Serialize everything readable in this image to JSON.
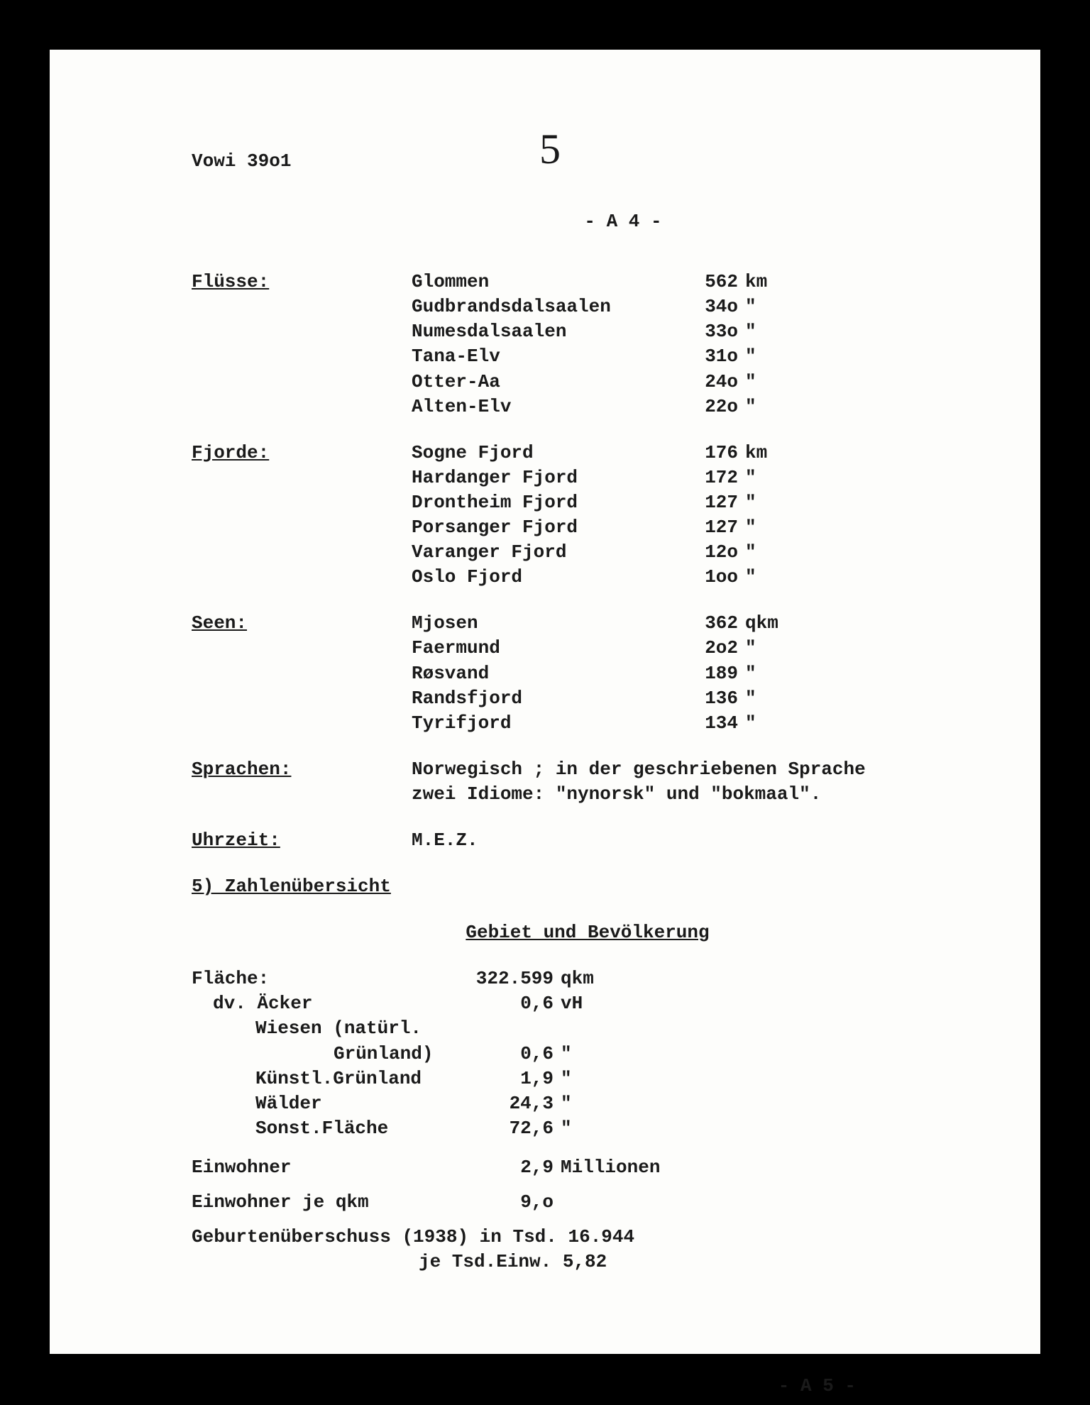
{
  "header": {
    "vowi": "Vowi 39o1",
    "handwritten_page": "5",
    "page_top": "- A 4 -",
    "page_bottom": "- A 5 -"
  },
  "sections": {
    "fluesse": {
      "label": "Flüsse:",
      "rows": [
        {
          "name": "Glommen",
          "val": "562",
          "unit": "km"
        },
        {
          "name": "Gudbrandsdalsaalen",
          "val": "34o",
          "unit": "\""
        },
        {
          "name": "Numesdalsaalen",
          "val": "33o",
          "unit": "\""
        },
        {
          "name": "Tana-Elv",
          "val": "31o",
          "unit": "\""
        },
        {
          "name": "Otter-Aa",
          "val": "24o",
          "unit": "\""
        },
        {
          "name": "Alten-Elv",
          "val": "22o",
          "unit": "\""
        }
      ]
    },
    "fjorde": {
      "label": "Fjorde:",
      "rows": [
        {
          "name": "Sogne Fjord",
          "val": "176",
          "unit": "km"
        },
        {
          "name": "Hardanger Fjord",
          "val": "172",
          "unit": "\""
        },
        {
          "name": "Drontheim Fjord",
          "val": "127",
          "unit": "\""
        },
        {
          "name": "Porsanger Fjord",
          "val": "127",
          "unit": "\""
        },
        {
          "name": "Varanger Fjord",
          "val": "12o",
          "unit": "\""
        },
        {
          "name": "Oslo Fjord",
          "val": "1oo",
          "unit": "\""
        }
      ]
    },
    "seen": {
      "label": "Seen:",
      "rows": [
        {
          "name": "Mjosen",
          "val": "362",
          "unit": "qkm"
        },
        {
          "name": "Faermund",
          "val": "2o2",
          "unit": "\""
        },
        {
          "name": "Røsvand",
          "val": "189",
          "unit": "\""
        },
        {
          "name": "Randsfjord",
          "val": "136",
          "unit": "\""
        },
        {
          "name": "Tyrifjord",
          "val": "134",
          "unit": "\""
        }
      ]
    },
    "sprachen": {
      "label": "Sprachen:",
      "text": "Norwegisch ; in der geschriebenen Sprache zwei Idiome: \"nynorsk\" und \"bokmaal\"."
    },
    "uhrzeit": {
      "label": "Uhrzeit:",
      "text": "M.E.Z."
    }
  },
  "zahlen": {
    "heading": "5) Zahlenübersicht",
    "subheading": "Gebiet und Bevölkerung",
    "flaeche": {
      "label": "Fläche:",
      "val": "322.599",
      "unit": "qkm"
    },
    "breakdown": [
      {
        "label": "dv. Äcker",
        "val": "0,6",
        "unit": "vH",
        "indent": "indent1"
      },
      {
        "label": "Wiesen (natürl.",
        "val": "",
        "unit": "",
        "indent": "indent2"
      },
      {
        "label": "Grünland)",
        "val": "0,6",
        "unit": "\"",
        "indent": "indent3"
      },
      {
        "label": "Künstl.Grünland",
        "val": "1,9",
        "unit": "\"",
        "indent": "indent2"
      },
      {
        "label": "Wälder",
        "val": "24,3",
        "unit": "\"",
        "indent": "indent2"
      },
      {
        "label": "Sonst.Fläche",
        "val": "72,6",
        "unit": "\"",
        "indent": "indent2"
      }
    ],
    "einwohner": {
      "label": "Einwohner",
      "val": "2,9",
      "unit": "Millionen"
    },
    "einwohner_qkm": {
      "label": "Einwohner je qkm",
      "val": "9,o",
      "unit": ""
    },
    "geburt1": "Geburtenüberschuss (1938) in Tsd. 16.944",
    "geburt2": "je Tsd.Einw.    5,82"
  },
  "style": {
    "font": "Courier New",
    "font_size_pt": 26,
    "bg_color": "#fdfdfb",
    "text_color": "#1a1a1a",
    "frame_color": "#000000"
  }
}
